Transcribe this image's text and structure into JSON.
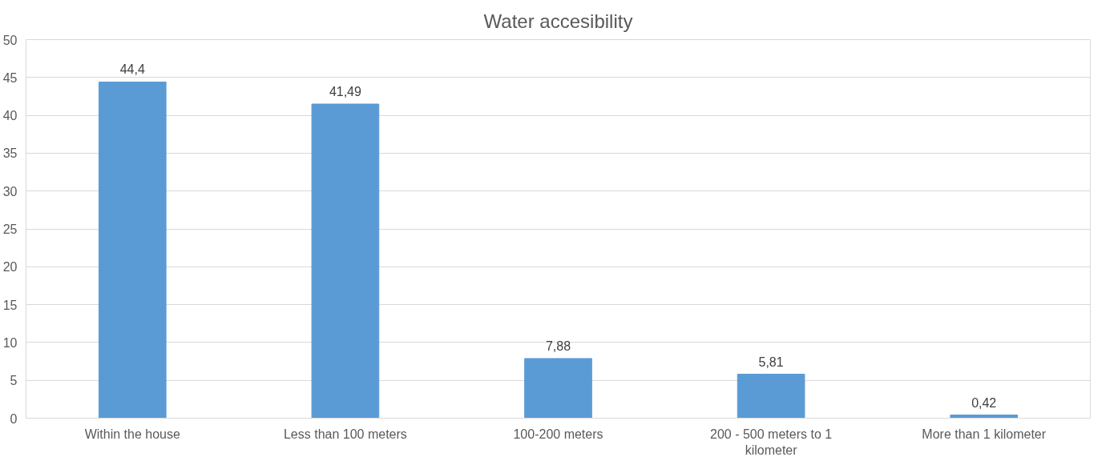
{
  "chart_data": {
    "type": "bar",
    "title": "Water accesibility",
    "categories": [
      "Within the house",
      "Less than 100 meters",
      "100-200 meters",
      "200 - 500 meters to 1 kilometer",
      "More than 1 kilometer"
    ],
    "values": [
      44.4,
      41.49,
      7.88,
      5.81,
      0.42
    ],
    "value_labels": [
      "44,4",
      "41,49",
      "7,88",
      "5,81",
      "0,42"
    ],
    "color": "#5b9bd5",
    "ylim": [
      0,
      50
    ],
    "yticks": [
      0,
      5,
      10,
      15,
      20,
      25,
      30,
      35,
      40,
      45,
      50
    ],
    "grid": "y"
  }
}
